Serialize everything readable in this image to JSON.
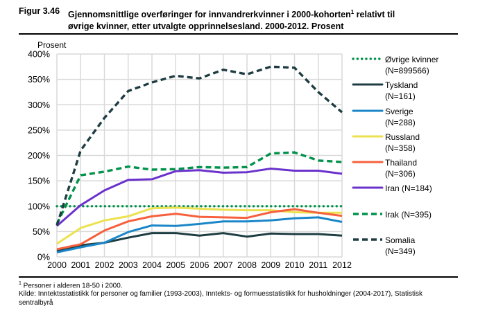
{
  "figure": {
    "label": "Figur 3.46",
    "title_line1": "Gjennomsnittlige overføringer for innvandrerkvinner i 2000-kohorten",
    "title_sup": "1",
    "title_line1_end": " relativt til",
    "title_line2": "øvrige kvinner, etter utvalgte opprinnelsesland. 2000-2012. Prosent"
  },
  "footnotes": {
    "note_sup": "1",
    "note": " Personer i alderen 18-50 i 2000.",
    "source": "Kilde: Inntektsstatistikk for personer og familier (1993-2003), Inntekts- og formuesstatistikk for husholdninger (2004-2017), Statistisk sentralbyrå"
  },
  "chart_data": {
    "type": "line",
    "title": "Gjennomsnittlige overføringer for innvandrerkvinner i 2000-kohorten relativt til øvrige kvinner, etter utvalgte opprinnelsesland. 2000-2012. Prosent",
    "xlabel": "",
    "ylabel": "Prosent",
    "x": [
      2000,
      2001,
      2002,
      2003,
      2004,
      2005,
      2006,
      2007,
      2008,
      2009,
      2010,
      2011,
      2012
    ],
    "ylim": [
      0,
      400
    ],
    "yticks": [
      0,
      50,
      100,
      150,
      200,
      250,
      300,
      350,
      400
    ],
    "ytick_labels": [
      "0%",
      "50%",
      "100%",
      "150%",
      "200%",
      "250%",
      "300%",
      "350%",
      "400%"
    ],
    "grid": true,
    "legend_position": "right",
    "series": [
      {
        "name": "Øvrige kvinner",
        "n_label": "(N=899566)",
        "color": "#00924a",
        "style": "dotted",
        "values": [
          100,
          100,
          100,
          100,
          100,
          100,
          100,
          100,
          100,
          100,
          100,
          100,
          100
        ]
      },
      {
        "name": "Tyskland",
        "n_label": "(N=161)",
        "color": "#1e3d42",
        "style": "solid",
        "values": [
          12,
          23,
          28,
          38,
          47,
          47,
          42,
          47,
          40,
          46,
          45,
          45,
          42
        ]
      },
      {
        "name": "Sverige",
        "n_label": "(N=288)",
        "color": "#1a86c8",
        "style": "solid",
        "values": [
          9,
          19,
          28,
          49,
          62,
          61,
          65,
          70,
          70,
          72,
          76,
          78,
          69
        ]
      },
      {
        "name": "Russland",
        "n_label": "(N=358)",
        "color": "#ece14f",
        "style": "solid",
        "values": [
          26,
          57,
          72,
          80,
          96,
          97,
          95,
          93,
          92,
          92,
          88,
          87,
          87
        ]
      },
      {
        "name": "Thailand",
        "n_label": "(N=306)",
        "color": "#f7603d",
        "style": "solid",
        "values": [
          15,
          25,
          52,
          70,
          80,
          85,
          79,
          78,
          77,
          88,
          94,
          87,
          81
        ]
      },
      {
        "name": "Iran",
        "n_label": "(N=184)",
        "color": "#6a31cc",
        "style": "solid",
        "values": [
          61,
          102,
          131,
          152,
          153,
          169,
          171,
          166,
          167,
          174,
          170,
          170,
          164
        ]
      },
      {
        "name": "Irak",
        "n_label": "(N=395)",
        "color": "#00924a",
        "style": "dashed",
        "values": [
          65,
          161,
          168,
          178,
          172,
          173,
          177,
          176,
          177,
          204,
          206,
          190,
          187
        ]
      },
      {
        "name": "Somalia",
        "n_label": "(N=349)",
        "color": "#1e3d42",
        "style": "dashed",
        "values": [
          62,
          210,
          274,
          327,
          344,
          357,
          352,
          369,
          360,
          375,
          373,
          325,
          285
        ]
      }
    ],
    "legend": [
      {
        "line1": "Øvrige kvinner",
        "line2": "(N=899566)"
      },
      {
        "line1": "Tyskland",
        "line2": "(N=161)"
      },
      {
        "line1": "Sverige",
        "line2": "(N=288)"
      },
      {
        "line1": "Russland",
        "line2": "(N=358)"
      },
      {
        "line1": "Thailand",
        "line2": "(N=306)"
      },
      {
        "line1": "Iran (N=184)",
        "line2": ""
      },
      {
        "line1": "Irak (N=395)",
        "line2": ""
      },
      {
        "line1": "Somalia",
        "line2": "(N=349)"
      }
    ]
  }
}
